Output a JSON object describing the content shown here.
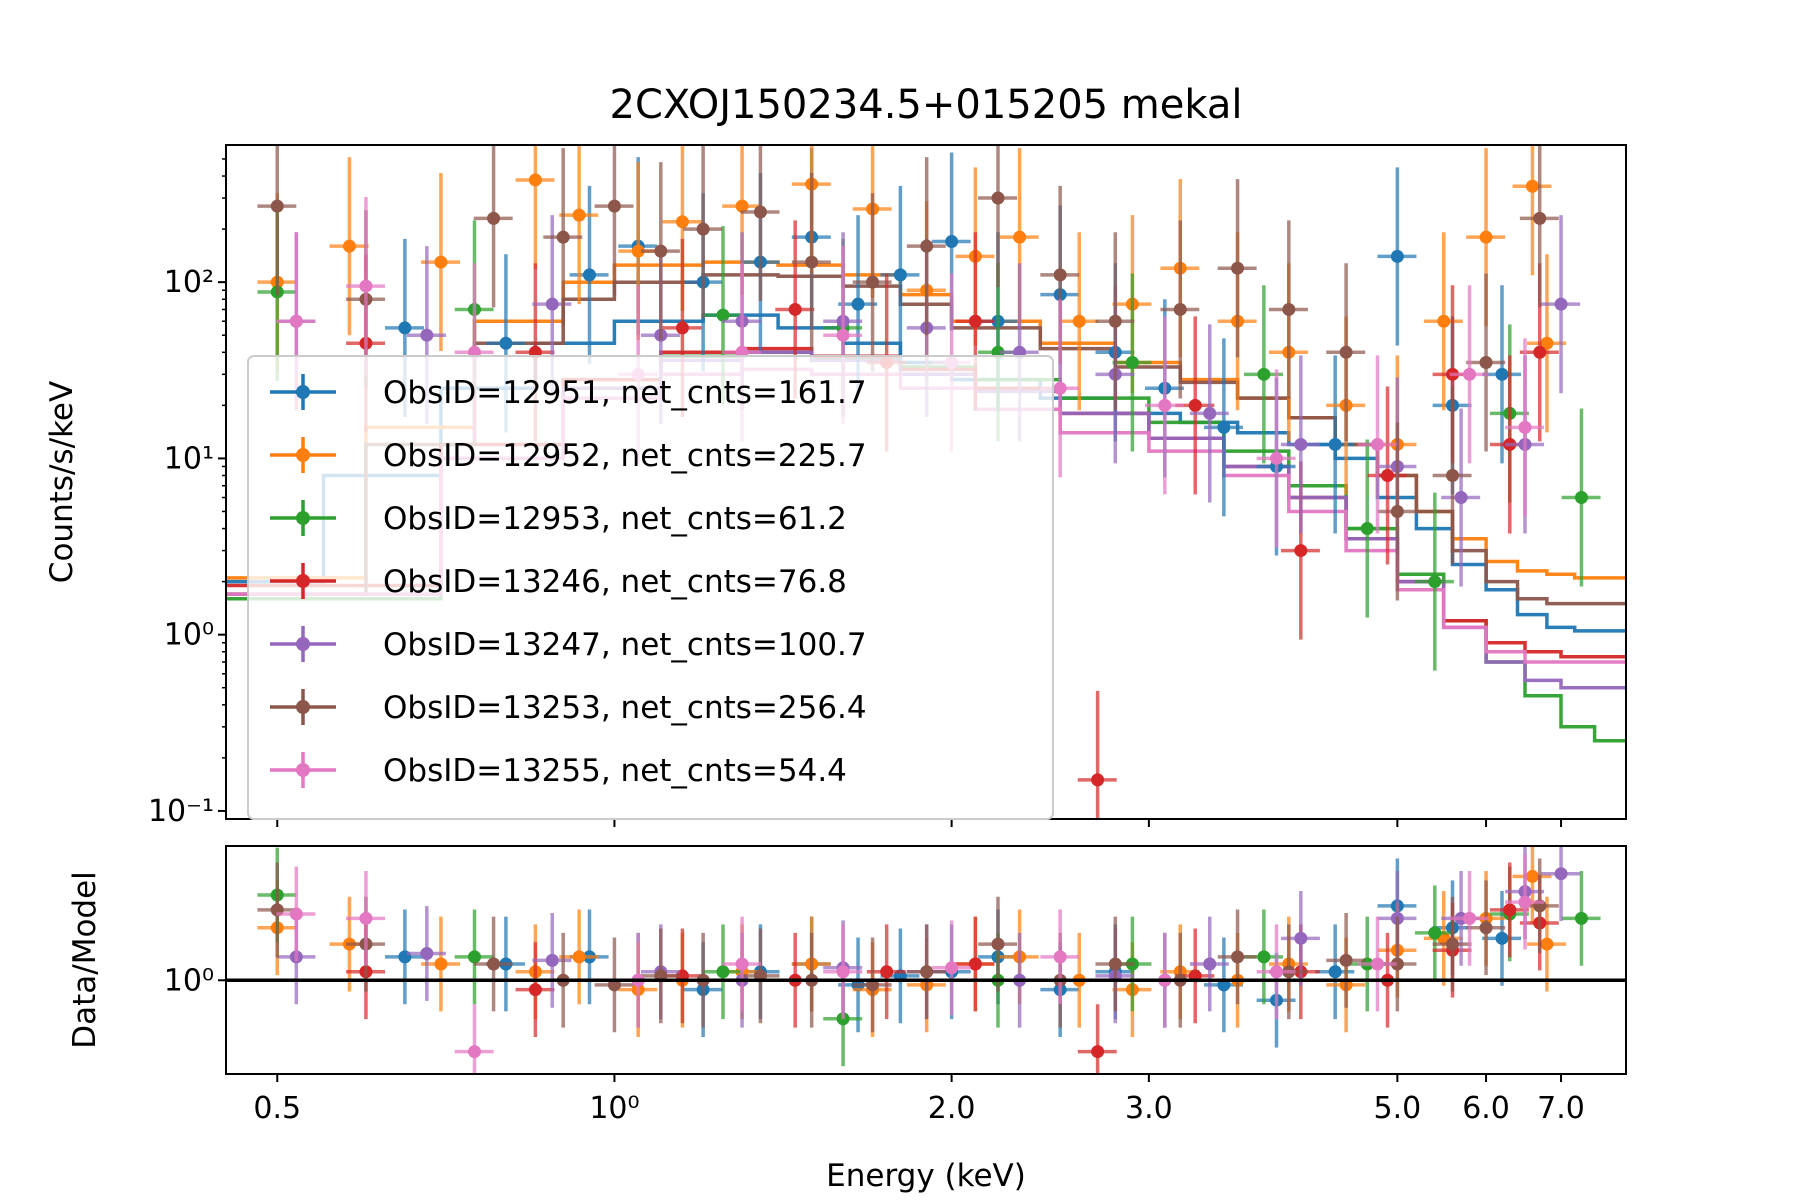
{
  "chart_data": [
    {
      "type": "scatter",
      "panel": "spectrum",
      "title": "2CXOJ150234.5+015205 mekal",
      "xlabel": "",
      "ylabel": "Counts/s/keV",
      "xscale": "log",
      "yscale": "log",
      "xlim": [
        0.45,
        8.0
      ],
      "ylim": [
        0.09,
        600
      ],
      "yticks": [
        {
          "value": 0.1,
          "label": "10⁻¹"
        },
        {
          "value": 1,
          "label": "10⁰"
        },
        {
          "value": 10,
          "label": "10¹"
        },
        {
          "value": 100,
          "label": "10²"
        }
      ],
      "legend_position": "center-left",
      "series": [
        {
          "name": "ObsID=12951, net_cnts=161.7",
          "color": "#1f77b4",
          "x": [
            0.65,
            0.8,
            0.95,
            1.05,
            1.2,
            1.35,
            1.5,
            1.65,
            1.8,
            2.0,
            2.2,
            2.5,
            2.8,
            3.1,
            3.5,
            3.9,
            4.4,
            5.0,
            5.6,
            6.2
          ],
          "y": [
            55,
            45,
            110,
            160,
            100,
            130,
            180,
            75,
            110,
            170,
            60,
            85,
            40,
            25,
            15,
            9,
            12,
            140,
            20,
            30
          ],
          "model": {
            "edges": [
              0.42,
              0.55,
              0.7,
              0.85,
              1.0,
              1.2,
              1.4,
              1.6,
              1.8,
              2.0,
              2.4,
              2.8,
              3.2,
              3.6,
              4.0,
              4.4,
              4.8,
              5.2,
              5.6,
              6.0,
              6.4,
              6.8,
              7.2,
              8.0
            ],
            "y": [
              2.0,
              8,
              25,
              45,
              60,
              65,
              55,
              45,
              35,
              28,
              22,
              18,
              16,
              14,
              12,
              10,
              6,
              4,
              2.5,
              1.8,
              1.3,
              1.1,
              1.05
            ]
          }
        },
        {
          "name": "ObsID=12952, net_cnts=225.7",
          "color": "#ff7f0e",
          "x": [
            0.5,
            0.58,
            0.7,
            0.85,
            0.93,
            1.05,
            1.15,
            1.3,
            1.5,
            1.7,
            1.9,
            2.1,
            2.3,
            2.6,
            2.9,
            3.2,
            3.6,
            4.0,
            4.5,
            5.0,
            5.5,
            6.0,
            6.6,
            6.8
          ],
          "y": [
            100,
            160,
            130,
            380,
            240,
            150,
            220,
            270,
            360,
            260,
            90,
            140,
            180,
            60,
            75,
            120,
            60,
            40,
            20,
            12,
            60,
            180,
            350,
            45
          ],
          "model": {
            "edges": [
              0.42,
              0.6,
              0.75,
              0.9,
              1.0,
              1.2,
              1.4,
              1.6,
              1.8,
              2.0,
              2.4,
              2.8,
              3.2,
              3.6,
              4.0,
              4.4,
              4.8,
              5.2,
              5.6,
              6.0,
              6.4,
              6.8,
              7.2,
              8.0
            ],
            "y": [
              2.1,
              15,
              60,
              100,
              125,
              130,
              125,
              110,
              85,
              60,
              45,
              35,
              28,
              22,
              17,
              12,
              8,
              5,
              3.5,
              2.6,
              2.3,
              2.2,
              2.1
            ]
          }
        },
        {
          "name": "ObsID=12953, net_cnts=61.2",
          "color": "#2ca02c",
          "x": [
            0.5,
            0.75,
            1.25,
            1.6,
            2.2,
            2.9,
            3.8,
            4.7,
            5.4,
            6.3,
            7.3
          ],
          "y": [
            88,
            70,
            65,
            55,
            40,
            35,
            30,
            4,
            2,
            18,
            6
          ],
          "model": {
            "edges": [
              0.42,
              0.7,
              0.9,
              1.1,
              1.3,
              1.5,
              1.8,
              2.1,
              2.5,
              3.0,
              3.5,
              4.0,
              4.5,
              5.0,
              5.5,
              6.0,
              6.5,
              7.0,
              7.5,
              8.0
            ],
            "y": [
              1.6,
              10,
              25,
              38,
              40,
              37,
              33,
              28,
              22,
              16,
              11,
              7,
              4,
              2.2,
              1.2,
              0.7,
              0.45,
              0.3,
              0.25
            ]
          }
        },
        {
          "name": "ObsID=13246, net_cnts=76.8",
          "color": "#d62728",
          "x": [
            0.6,
            0.85,
            1.15,
            1.45,
            1.75,
            2.1,
            2.7,
            3.3,
            4.1,
            4.9,
            5.6,
            6.3,
            6.7
          ],
          "y": [
            45,
            40,
            55,
            70,
            35,
            60,
            0.15,
            20,
            3,
            8,
            30,
            12,
            40
          ],
          "model": {
            "edges": [
              0.42,
              0.7,
              0.9,
              1.1,
              1.3,
              1.5,
              1.8,
              2.1,
              2.5,
              3.0,
              3.5,
              4.0,
              4.5,
              5.0,
              5.5,
              6.0,
              6.5,
              7.0,
              8.0
            ],
            "y": [
              1.9,
              12,
              28,
              40,
              42,
              38,
              32,
              25,
              18,
              13,
              9,
              6,
              3.5,
              2,
              1.2,
              0.9,
              0.8,
              0.75
            ]
          }
        },
        {
          "name": "ObsID=13247, net_cnts=100.7",
          "color": "#9467bd",
          "x": [
            0.52,
            0.68,
            0.88,
            1.1,
            1.3,
            1.6,
            1.9,
            2.3,
            2.8,
            3.4,
            4.1,
            5.0,
            5.7,
            6.5,
            7.0
          ],
          "y": [
            60,
            50,
            75,
            50,
            60,
            60,
            55,
            40,
            30,
            18,
            12,
            9,
            6,
            12,
            75
          ],
          "model": {
            "edges": [
              0.42,
              0.7,
              0.9,
              1.1,
              1.3,
              1.5,
              1.8,
              2.1,
              2.5,
              3.0,
              3.5,
              4.0,
              4.5,
              5.0,
              5.5,
              6.0,
              6.5,
              7.0,
              8.0
            ],
            "y": [
              1.7,
              10,
              25,
              36,
              40,
              36,
              30,
              24,
              18,
              13,
              9,
              6,
              3.5,
              2,
              1.1,
              0.7,
              0.55,
              0.5
            ]
          }
        },
        {
          "name": "ObsID=13253, net_cnts=256.4",
          "color": "#8c564b",
          "x": [
            0.5,
            0.6,
            0.78,
            0.9,
            1.0,
            1.1,
            1.2,
            1.35,
            1.5,
            1.7,
            1.9,
            2.2,
            2.5,
            2.8,
            3.2,
            3.6,
            4.0,
            4.5,
            5.0,
            5.6,
            6.0,
            6.7
          ],
          "y": [
            270,
            80,
            230,
            180,
            270,
            150,
            200,
            250,
            130,
            100,
            160,
            300,
            110,
            60,
            70,
            120,
            70,
            40,
            5,
            8,
            35,
            230
          ],
          "model": {
            "edges": [
              0.42,
              0.6,
              0.75,
              0.9,
              1.0,
              1.2,
              1.4,
              1.6,
              1.8,
              2.0,
              2.4,
              2.8,
              3.2,
              3.6,
              4.0,
              4.4,
              4.8,
              5.2,
              5.6,
              6.0,
              6.4,
              6.8,
              7.2,
              8.0
            ],
            "y": [
              1.7,
              12,
              45,
              80,
              100,
              110,
              108,
              95,
              75,
              55,
              42,
              33,
              27,
              22,
              17,
              12,
              8,
              5,
              3,
              2,
              1.6,
              1.5,
              1.5
            ]
          }
        },
        {
          "name": "ObsID=13255, net_cnts=54.4",
          "color": "#e377c2",
          "x": [
            0.52,
            0.6,
            0.75,
            1.05,
            1.3,
            1.6,
            2.0,
            2.5,
            3.1,
            3.9,
            4.8,
            5.8,
            6.5
          ],
          "y": [
            60,
            95,
            40,
            30,
            40,
            50,
            35,
            25,
            20,
            10,
            12,
            30,
            15
          ],
          "model": {
            "edges": [
              0.42,
              0.7,
              0.9,
              1.1,
              1.3,
              1.5,
              1.8,
              2.1,
              2.5,
              3.0,
              3.5,
              4.0,
              4.5,
              5.0,
              5.5,
              6.0,
              6.5,
              7.0,
              8.0
            ],
            "y": [
              1.7,
              10,
              22,
              30,
              32,
              30,
              25,
              19,
              14,
              11,
              8,
              5,
              3,
              1.8,
              1.1,
              0.8,
              0.7,
              0.7
            ]
          }
        }
      ]
    },
    {
      "type": "scatter",
      "panel": "ratio",
      "title": "",
      "xlabel": "Energy (keV)",
      "ylabel": "Data/Model",
      "xscale": "log",
      "yscale": "log",
      "xlim": [
        0.45,
        8.0
      ],
      "ylim": [
        0.35,
        4.5
      ],
      "xticks": [
        {
          "value": 0.5,
          "label": "0.5"
        },
        {
          "value": 1.0,
          "label": "10⁰"
        },
        {
          "value": 2.0,
          "label": "2.0"
        },
        {
          "value": 3.0,
          "label": "3.0"
        },
        {
          "value": 5.0,
          "label": "5.0"
        },
        {
          "value": 6.0,
          "label": "6.0"
        },
        {
          "value": 7.0,
          "label": "7.0"
        }
      ],
      "yticks": [
        {
          "value": 1.0,
          "label": "10⁰"
        }
      ],
      "reference_line": 1.0,
      "series": [
        {
          "name": "ObsID=12951, net_cnts=161.7",
          "color": "#1f77b4",
          "x": [
            0.65,
            0.8,
            0.95,
            1.05,
            1.2,
            1.35,
            1.5,
            1.65,
            1.8,
            2.0,
            2.2,
            2.5,
            2.8,
            3.1,
            3.5,
            3.9,
            4.4,
            5.0,
            5.6,
            6.2
          ],
          "y": [
            1.3,
            1.2,
            1.3,
            1.0,
            0.9,
            1.1,
            1.2,
            0.95,
            1.05,
            1.1,
            1.3,
            0.9,
            1.1,
            1.0,
            0.95,
            0.8,
            1.1,
            2.3,
            1.8,
            1.6
          ]
        },
        {
          "name": "ObsID=12952, net_cnts=225.7",
          "color": "#ff7f0e",
          "x": [
            0.5,
            0.58,
            0.7,
            0.85,
            0.93,
            1.05,
            1.15,
            1.3,
            1.5,
            1.7,
            1.9,
            2.1,
            2.3,
            2.6,
            2.9,
            3.2,
            3.6,
            4.0,
            4.5,
            5.0,
            5.5,
            6.0,
            6.6,
            6.8
          ],
          "y": [
            1.8,
            1.5,
            1.2,
            1.1,
            1.3,
            0.9,
            1.0,
            1.1,
            1.2,
            0.9,
            0.95,
            1.2,
            1.3,
            1.0,
            0.9,
            1.1,
            1.0,
            1.2,
            0.95,
            1.4,
            1.6,
            2.0,
            3.2,
            1.5
          ]
        },
        {
          "name": "ObsID=12953, net_cnts=61.2",
          "color": "#2ca02c",
          "x": [
            0.5,
            0.75,
            1.25,
            1.6,
            2.2,
            2.9,
            3.8,
            4.7,
            5.4,
            6.3,
            7.3
          ],
          "y": [
            2.6,
            1.3,
            1.1,
            0.65,
            1.0,
            1.2,
            1.3,
            1.2,
            1.7,
            2.1,
            2.0
          ]
        },
        {
          "name": "ObsID=13246, net_cnts=76.8",
          "color": "#d62728",
          "x": [
            0.6,
            0.85,
            1.15,
            1.45,
            1.75,
            2.1,
            2.7,
            3.3,
            4.1,
            4.9,
            5.6,
            6.3,
            6.7
          ],
          "y": [
            1.1,
            0.9,
            1.05,
            1.0,
            1.1,
            1.2,
            0.45,
            1.05,
            1.1,
            1.0,
            1.4,
            2.2,
            1.9
          ]
        },
        {
          "name": "ObsID=13247, net_cnts=100.7",
          "color": "#9467bd",
          "x": [
            0.52,
            0.68,
            0.88,
            1.1,
            1.3,
            1.6,
            1.9,
            2.3,
            2.8,
            3.4,
            4.1,
            5.0,
            5.7,
            6.5,
            7.0
          ],
          "y": [
            1.3,
            1.35,
            1.25,
            1.1,
            1.0,
            1.15,
            1.1,
            1.0,
            1.05,
            1.2,
            1.6,
            2.0,
            2.0,
            2.7,
            3.3
          ]
        },
        {
          "name": "ObsID=13253, net_cnts=256.4",
          "color": "#8c564b",
          "x": [
            0.5,
            0.6,
            0.78,
            0.9,
            1.0,
            1.1,
            1.2,
            1.35,
            1.5,
            1.7,
            1.9,
            2.2,
            2.5,
            2.8,
            3.2,
            3.6,
            4.0,
            4.5,
            5.0,
            5.6,
            6.0,
            6.7
          ],
          "y": [
            2.2,
            1.5,
            1.2,
            1.0,
            0.95,
            1.05,
            1.0,
            1.05,
            1.0,
            0.95,
            1.1,
            1.5,
            1.0,
            1.2,
            1.0,
            1.3,
            1.1,
            1.25,
            1.2,
            1.5,
            1.8,
            2.3
          ]
        },
        {
          "name": "ObsID=13255, net_cnts=54.4",
          "color": "#e377c2",
          "x": [
            0.52,
            0.6,
            0.75,
            1.05,
            1.3,
            1.6,
            2.0,
            2.5,
            3.1,
            3.9,
            4.8,
            5.8,
            6.5
          ],
          "y": [
            2.1,
            2.0,
            0.45,
            1.0,
            1.2,
            1.1,
            1.15,
            1.3,
            1.0,
            1.1,
            1.2,
            2.0,
            2.4
          ]
        }
      ]
    }
  ]
}
